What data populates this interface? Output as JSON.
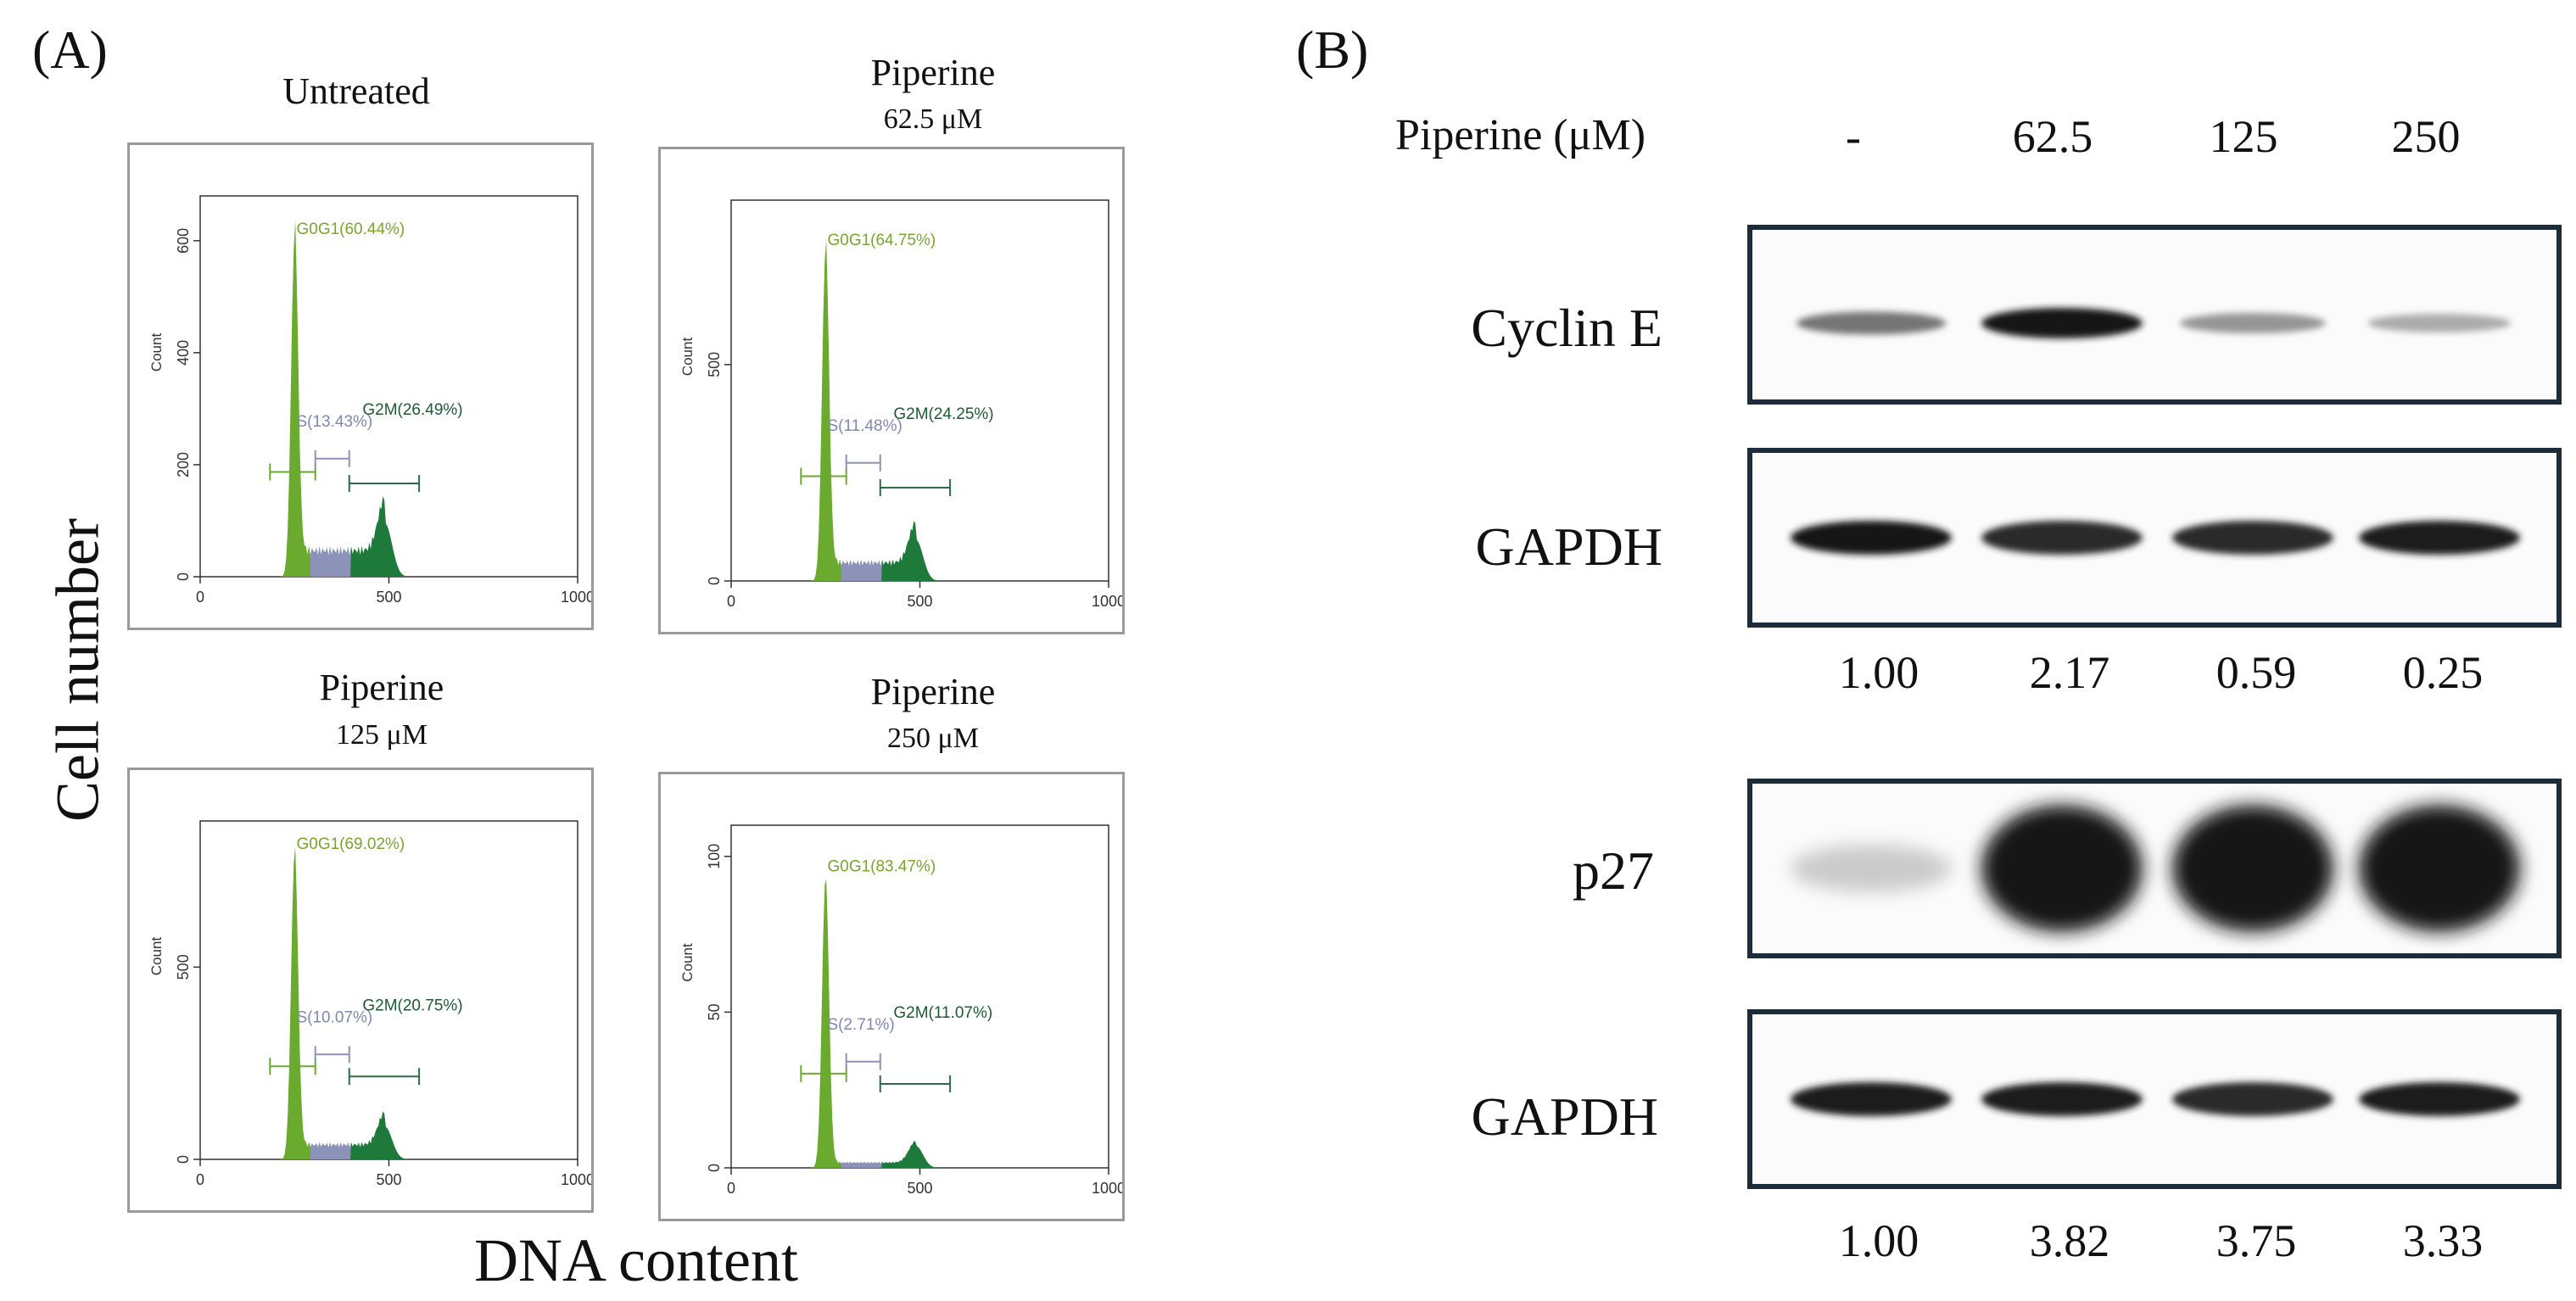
{
  "panel_a": {
    "label": "(A)",
    "y_axis_label": "Cell number",
    "x_axis_label": "DNA content",
    "histograms": [
      {
        "title": "Untreated",
        "subtitle": "",
        "y_ticks": [
          "0",
          "200",
          "400",
          "600"
        ],
        "y_max": 680,
        "x_ticks": [
          "0",
          "500",
          "1000"
        ],
        "count_label": "Count",
        "g0g1": "G0G1(60.44%)",
        "s": "S(13.43%)",
        "g2m": "G2M(26.49%)",
        "chart_data": {
          "type": "histogram",
          "xlim": [
            0,
            1000
          ],
          "ylim": [
            0,
            680
          ],
          "g0g1_peak": [
            250,
            600
          ],
          "g2m_peak": [
            490,
            95
          ],
          "s_level": 55
        }
      },
      {
        "title": "Piperine",
        "subtitle": "62.5 μM",
        "y_ticks": [
          "0",
          "500"
        ],
        "y_max": 880,
        "x_ticks": [
          "0",
          "500",
          "1000"
        ],
        "count_label": "Count",
        "g0g1": "G0G1(64.75%)",
        "s": "S(11.48%)",
        "g2m": "G2M(24.25%)",
        "chart_data": {
          "type": "histogram",
          "xlim": [
            0,
            1000
          ],
          "ylim": [
            0,
            880
          ],
          "g0g1_peak": [
            250,
            760
          ],
          "g2m_peak": [
            490,
            95
          ],
          "s_level": 50
        }
      },
      {
        "title": "Piperine",
        "subtitle": "125 μM",
        "y_ticks": [
          "0",
          "500"
        ],
        "y_max": 880,
        "x_ticks": [
          "0",
          "500",
          "1000"
        ],
        "count_label": "Count",
        "g0g1": "G0G1(69.02%)",
        "s": "S(10.07%)",
        "g2m": "G2M(20.75%)",
        "chart_data": {
          "type": "histogram",
          "xlim": [
            0,
            1000
          ],
          "ylim": [
            0,
            880
          ],
          "g0g1_peak": [
            250,
            790
          ],
          "g2m_peak": [
            490,
            85
          ],
          "s_level": 45
        }
      },
      {
        "title": "Piperine",
        "subtitle": "250 μM",
        "y_ticks": [
          "0",
          "50",
          "100"
        ],
        "y_max": 110,
        "x_ticks": [
          "0",
          "500",
          "1000"
        ],
        "count_label": "Count",
        "g0g1": "G0G1(83.47%)",
        "s": "S(2.71%)",
        "g2m": "G2M(11.07%)",
        "chart_data": {
          "type": "histogram",
          "xlim": [
            0,
            1000
          ],
          "ylim": [
            0,
            110
          ],
          "g0g1_peak": [
            250,
            93
          ],
          "g2m_peak": [
            490,
            7
          ],
          "s_level": 2
        }
      }
    ]
  },
  "panel_b": {
    "label": "(B)",
    "conc_header": "Piperine (μM)",
    "concentrations": [
      "-",
      "62.5",
      "125",
      "250"
    ],
    "blots": {
      "cyclin_e": {
        "label": "Cyclin E",
        "intensity": [
          0.55,
          1.0,
          0.4,
          0.3
        ]
      },
      "gapdh_1": {
        "label": "GAPDH",
        "intensity": [
          1.0,
          0.9,
          0.9,
          0.95
        ]
      },
      "p27": {
        "label": "p27",
        "intensity": [
          0.15,
          1.0,
          1.0,
          1.0
        ]
      },
      "gapdh_2": {
        "label": "GAPDH",
        "intensity": [
          0.95,
          0.95,
          0.9,
          0.95
        ]
      }
    },
    "quant_cyclin_e": [
      "1.00",
      "2.17",
      "0.59",
      "0.25"
    ],
    "quant_p27": [
      "1.00",
      "3.82",
      "3.75",
      "3.33"
    ]
  },
  "colors": {
    "g0g1": "#6aaa2e",
    "s": "#8d93b8",
    "g2m": "#1e7a3a",
    "frame": "#1d2c3b"
  }
}
